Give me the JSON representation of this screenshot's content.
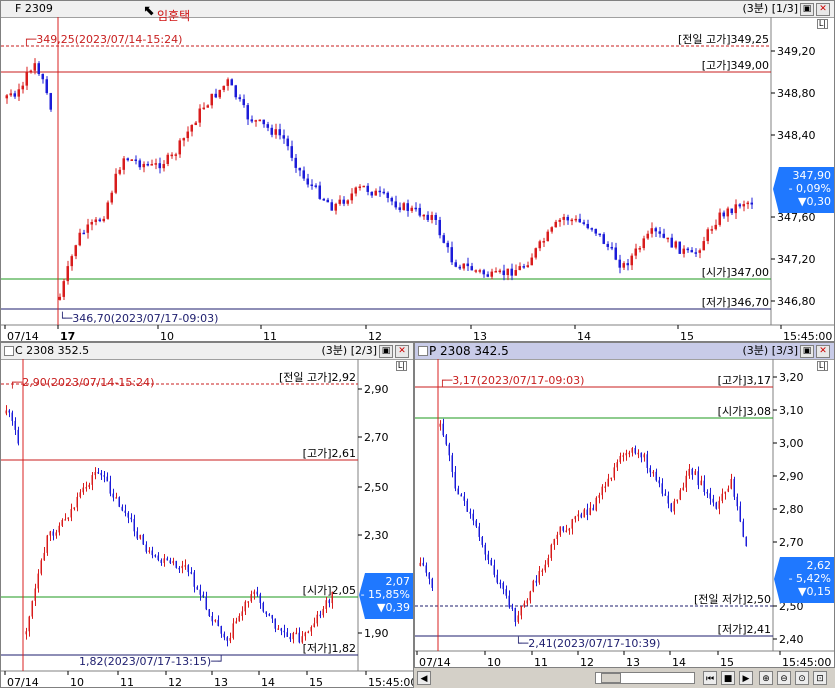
{
  "top": {
    "title": "F 2309",
    "interval": "(3분)",
    "page": "[1/3]",
    "annotation_user": "임훈택",
    "high_marker": "349,25(2023/07/14-15:24)",
    "low_marker": "346,70(2023/07/17-09:03)",
    "levels": [
      "[전일 고가]349,25",
      "[고가]349,00",
      "[시가]347,00",
      "[저가]346,70"
    ],
    "y_ticks": [
      "349,20",
      "348,80",
      "348,40",
      "347,60",
      "347,20",
      "346,80"
    ],
    "x_ticks": [
      "07/14",
      "17",
      "10",
      "11",
      "12",
      "13",
      "14",
      "15",
      "15:45:00"
    ],
    "price_tag": [
      "347,90",
      "- 0,09%",
      "▼0,30"
    ]
  },
  "bottom_left": {
    "title": "C 2308 352.5",
    "interval": "(3분)",
    "page": "[2/3]",
    "high_marker": "2,90(2023/07/14-15:24)",
    "low_marker": "1,82(2023/07/17-13:15)",
    "levels": [
      "[전일 고가]2,92",
      "[고가]2,61",
      "[시가]2,05",
      "[저가]1,82"
    ],
    "y_ticks": [
      "2,90",
      "2,70",
      "2,50",
      "2,30",
      "1,90"
    ],
    "x_ticks": [
      "07/14",
      "10",
      "11",
      "12",
      "13",
      "14",
      "15",
      "15:45:00"
    ],
    "price_tag": [
      "2,07",
      "- 15,85%",
      "▼0,39"
    ]
  },
  "bottom_right": {
    "title": "P 2308 342.5",
    "interval": "(3분)",
    "page": "[3/3]",
    "high_marker": "3,17(2023/07/17-09:03)",
    "low_marker": "2,41(2023/07/17-10:39)",
    "levels": [
      "[고가]3,17",
      "[시가]3,08",
      "[전일 저가]2,50",
      "[저가]2,41"
    ],
    "y_ticks": [
      "3,20",
      "3,10",
      "3,00",
      "2,90",
      "2,80",
      "2,70",
      "2,50",
      "2,40"
    ],
    "x_ticks": [
      "07/14",
      "10",
      "11",
      "12",
      "13",
      "14",
      "15",
      "15:45:00"
    ],
    "price_tag": [
      "2,62",
      "- 5,42%",
      "▼0,15"
    ]
  },
  "colors": {
    "up": "#d81c1c",
    "down": "#1c1cd8",
    "tag": "#1f78ff",
    "high_line": "#c81e1e",
    "open_line": "#1e9a1e"
  }
}
